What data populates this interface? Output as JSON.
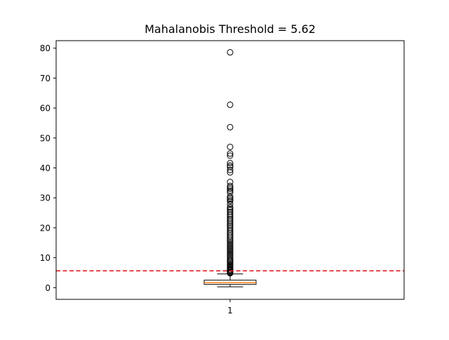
{
  "chart_data": {
    "type": "box",
    "title": "Mahalanobis Threshold = 5.62",
    "xlabel": "",
    "ylabel": "",
    "categories": [
      "1"
    ],
    "ylim": [
      -3.9,
      82.5
    ],
    "yticks": [
      0,
      10,
      20,
      30,
      40,
      50,
      60,
      70,
      80
    ],
    "grid": false,
    "box": {
      "whisker_low": 0.3,
      "q1": 1.1,
      "median": 1.7,
      "q3": 2.5,
      "whisker_high": 4.6
    },
    "threshold": {
      "value": 5.62,
      "color": "#e31a1c",
      "style": "dashed"
    },
    "outliers": [
      78.6,
      61.1,
      53.6,
      47.0,
      44.8,
      44.1,
      41.6,
      40.8,
      40.3,
      39.3,
      38.5,
      35.3,
      34.0,
      33.5,
      33.0,
      32.4,
      31.8,
      30.4,
      29.9,
      29.4,
      28.9,
      27.9,
      26.9,
      26.4,
      25.9,
      25.3,
      24.6,
      24.1,
      23.5,
      22.9,
      22.3,
      21.7,
      21.1,
      20.6,
      20.0,
      19.4,
      18.8,
      18.2,
      17.6,
      17.0,
      16.4,
      15.8,
      15.3,
      14.8,
      14.3,
      13.8,
      13.3,
      12.8,
      12.3,
      11.8,
      11.3,
      10.8,
      10.3,
      9.8,
      9.3,
      8.9,
      8.5,
      8.1,
      7.7,
      7.3,
      6.9,
      6.5,
      6.1,
      5.8,
      5.5,
      5.2,
      5.0,
      4.8
    ]
  },
  "colors": {
    "box_edge": "#000000",
    "median": "#ff7f0e",
    "threshold": "#e31a1c"
  }
}
